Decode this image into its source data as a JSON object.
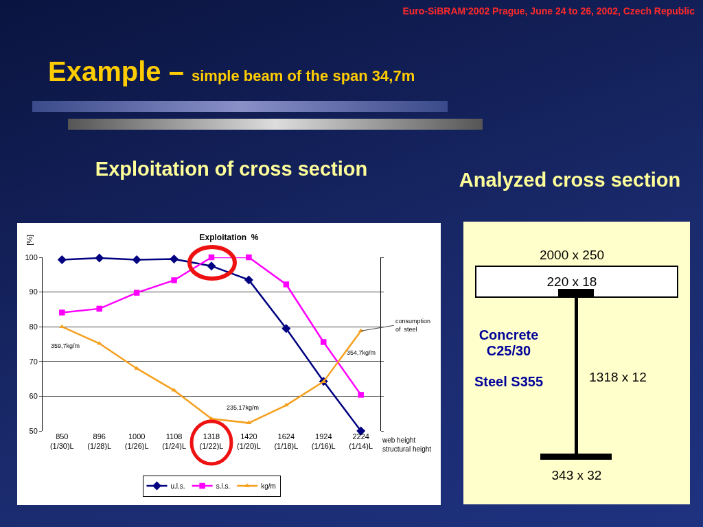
{
  "chart_data": [
    {
      "type": "line",
      "title": "Exploitation of cross section",
      "subtitle": "Exploitation  %",
      "ylabel": "[%]",
      "xlabel": "web height\nstructural height",
      "categories": [
        "850\n(1/30)L",
        "896\n(1/28)L",
        "1000\n(1/26)L",
        "1108\n(1/24)L",
        "1318\n(1/22)L",
        "1420\n(1/20)L",
        "1624\n(1/18)L",
        "1924\n(1/16)L",
        "2224\n(1/14)L"
      ],
      "series": [
        {
          "name": "u.l.s.",
          "color": "#000080",
          "marker": "diamond",
          "values": [
            99.3,
            99.8,
            99.3,
            99.5,
            97.5,
            93.5,
            79.5,
            64.3,
            50
          ]
        },
        {
          "name": "s.l.s.",
          "color": "#ff00ff",
          "marker": "square",
          "values": [
            84.1,
            85.2,
            89.8,
            93.4,
            100,
            100,
            92.2,
            75.6,
            60.4
          ]
        },
        {
          "name": "kg/m",
          "color": "#f5a01e",
          "marker": "triangle",
          "values": [
            80,
            75.2,
            68,
            61.7,
            53.5,
            52.3,
            57.4,
            64.2,
            78.8
          ]
        }
      ],
      "ylim": [
        50,
        100
      ],
      "yticks": [
        50,
        60,
        70,
        80,
        90,
        100
      ],
      "grid": "y",
      "legend": "bottom",
      "line_style": "solid",
      "annotations": [
        "Euro-SiBRAM‘2002 Prague, June 24 to 26, 2002, Czech Republic",
        "Example –",
        "simple beam of the span 34,7m",
        {
          "text": "359,7kg/m",
          "x": "850\n(1/30)L",
          "y": 80
        },
        {
          "text": "235,17kg/m",
          "x": "1318\n(1/22)L",
          "y": 53.5
        },
        {
          "text": "354,7kg/m",
          "x": "2224\n(1/14)L",
          "y": 78.8
        },
        {
          "text": "consumption\nof  steel",
          "x": "2224\n(1/14)L",
          "y": 78.8
        }
      ]
    },
    {
      "type": "other",
      "title": "Analyzed cross section",
      "annotations": [
        "2000 x 250",
        "220 x 18",
        "Concrete\nC25/30",
        "Steel S355",
        "1318 x 12",
        "343 x 32"
      ]
    }
  ]
}
